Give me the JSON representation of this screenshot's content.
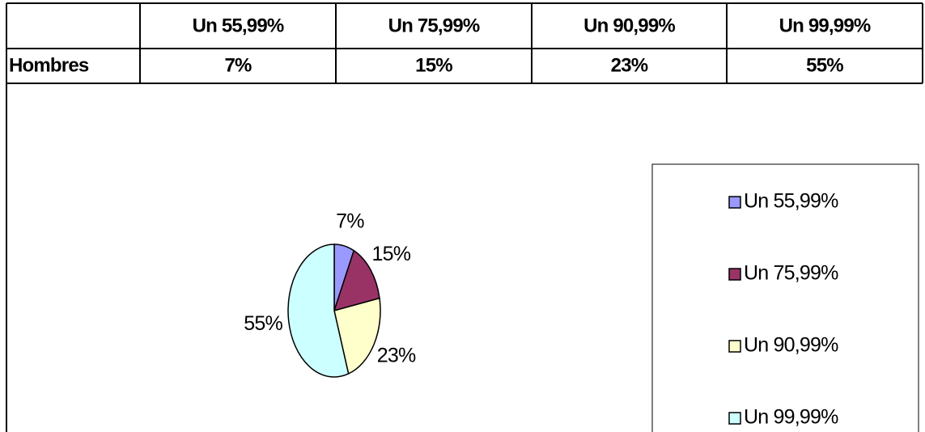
{
  "table": {
    "columns": [
      "Un 55,99%",
      "Un 75,99%",
      "Un 90,99%",
      "Un 99,99%"
    ],
    "rows": [
      {
        "label": "Hombres",
        "cells": [
          "7%",
          "15%",
          "23%",
          "55%"
        ]
      }
    ]
  },
  "chart_data": {
    "type": "pie",
    "categories": [
      "Un 55,99%",
      "Un 75,99%",
      "Un 90,99%",
      "Un 99,99%"
    ],
    "values": [
      7,
      15,
      23,
      55
    ],
    "value_labels": [
      "7%",
      "15%",
      "23%",
      "55%"
    ],
    "colors": [
      "#9999ff",
      "#993366",
      "#ffffcc",
      "#ccffff"
    ],
    "legend": "right"
  }
}
